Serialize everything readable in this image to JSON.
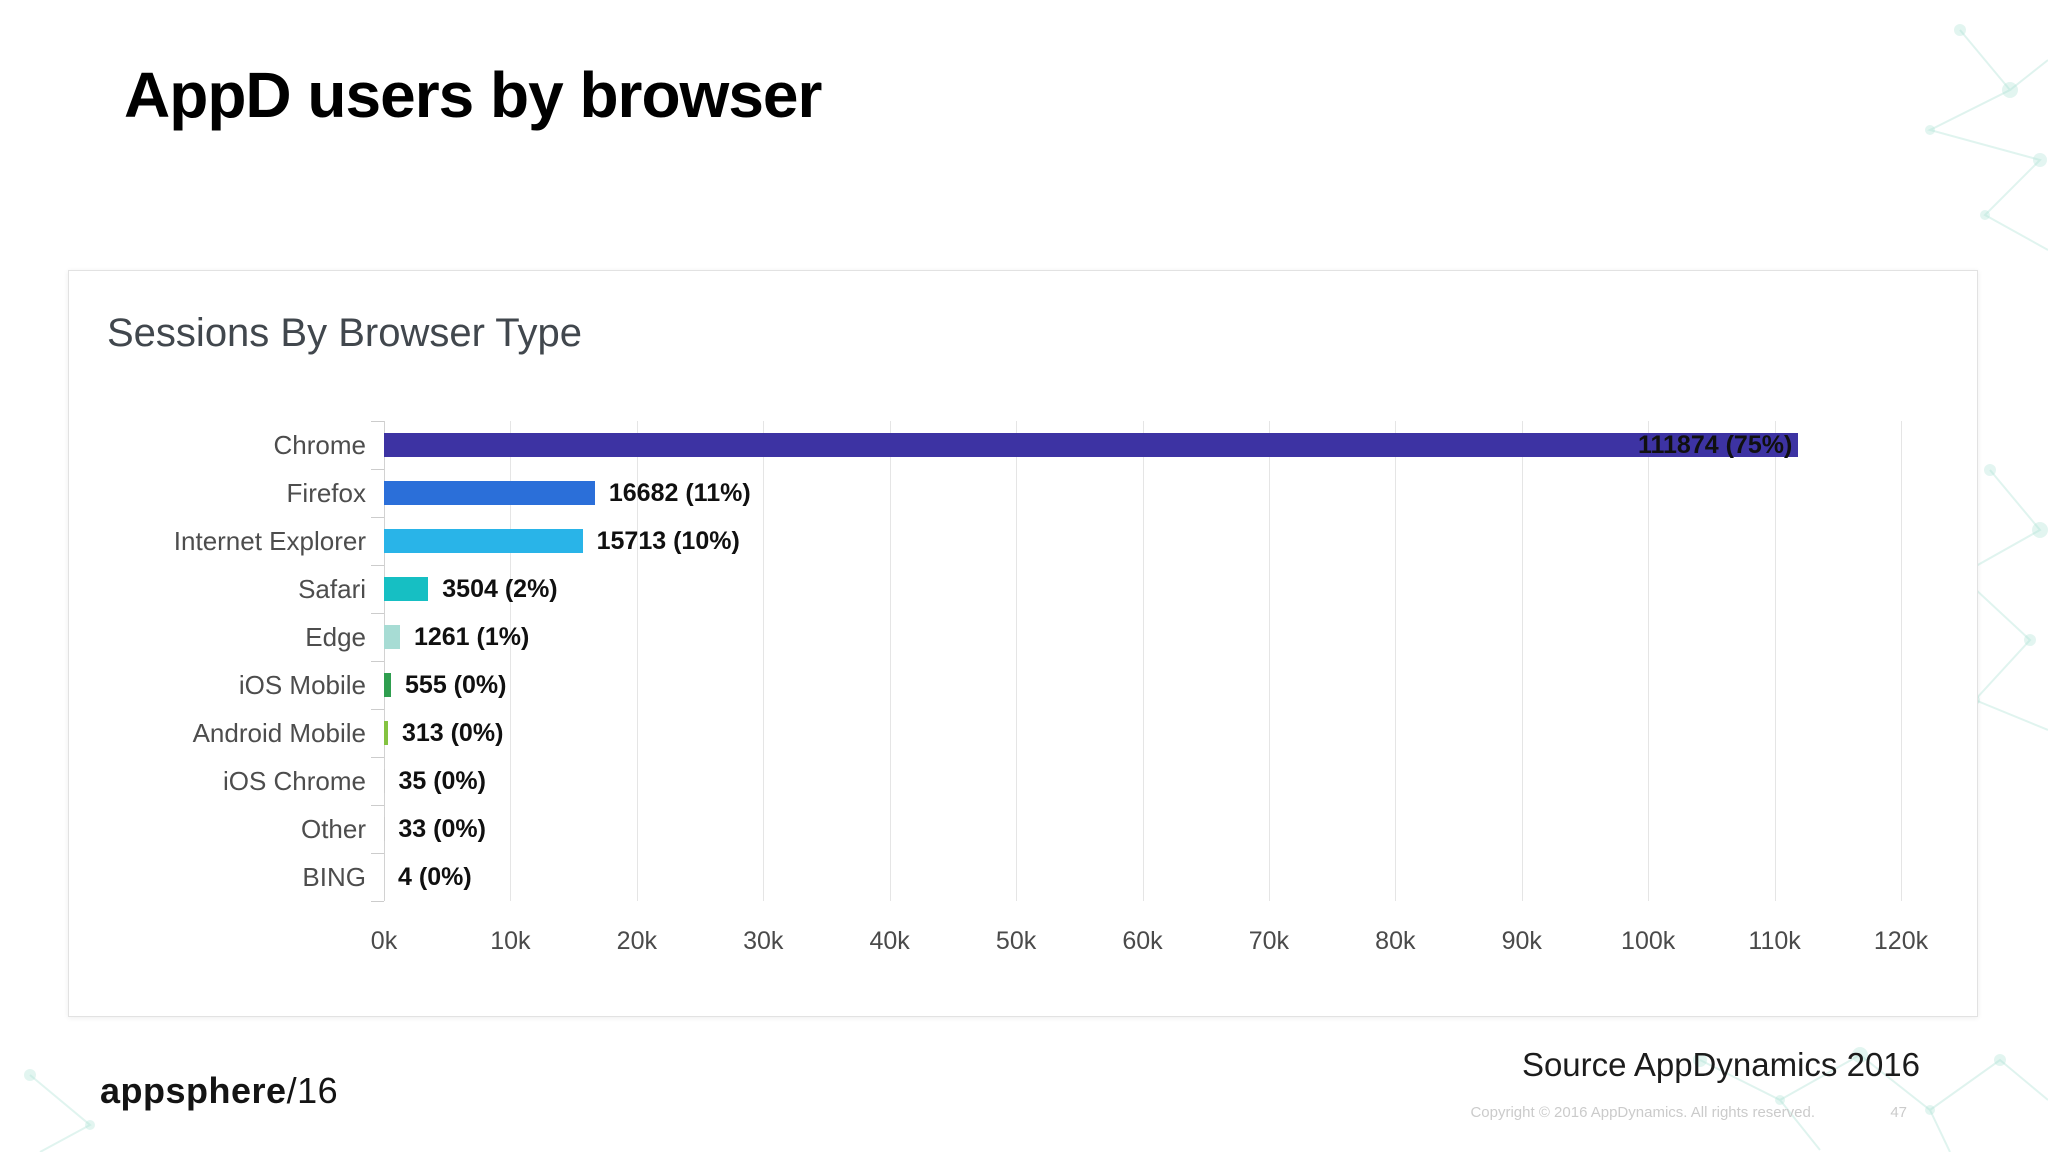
{
  "slide": {
    "title": "AppD users by browser",
    "source": "Source AppDynamics 2016",
    "copyright": "Copyright © 2016 AppDynamics. All rights reserved.",
    "page_number": "47",
    "logo_brand": "appsphere",
    "logo_suffix": "/16"
  },
  "chart_data": {
    "type": "bar",
    "orientation": "horizontal",
    "title": "Sessions By Browser Type",
    "categories": [
      "Chrome",
      "Firefox",
      "Internet Explorer",
      "Safari",
      "Edge",
      "iOS Mobile",
      "Android Mobile",
      "iOS Chrome",
      "Other",
      "BING"
    ],
    "values": [
      111874,
      16682,
      15713,
      3504,
      1261,
      555,
      313,
      35,
      33,
      4
    ],
    "value_labels": [
      "111874 (75%)",
      "16682 (11%)",
      "15713 (10%)",
      "3504 (2%)",
      "1261 (1%)",
      "555 (0%)",
      "313 (0%)",
      "35 (0%)",
      "33 (0%)",
      "4 (0%)"
    ],
    "bar_colors": [
      "#3d33a3",
      "#2b6fd9",
      "#29b4e8",
      "#16bfc3",
      "#a7dcd4",
      "#2f9e4f",
      "#84c341",
      "#cccccc",
      "#cccccc",
      "#cccccc"
    ],
    "x_ticks": [
      "0k",
      "10k",
      "20k",
      "30k",
      "40k",
      "50k",
      "60k",
      "70k",
      "80k",
      "90k",
      "100k",
      "110k",
      "120k"
    ],
    "xlabel": "",
    "ylabel": "",
    "xlim": [
      0,
      120000
    ],
    "grid": true,
    "legend": false
  },
  "decor": {
    "pattern": "molecule-network",
    "accent_color": "#7ecfc0"
  }
}
